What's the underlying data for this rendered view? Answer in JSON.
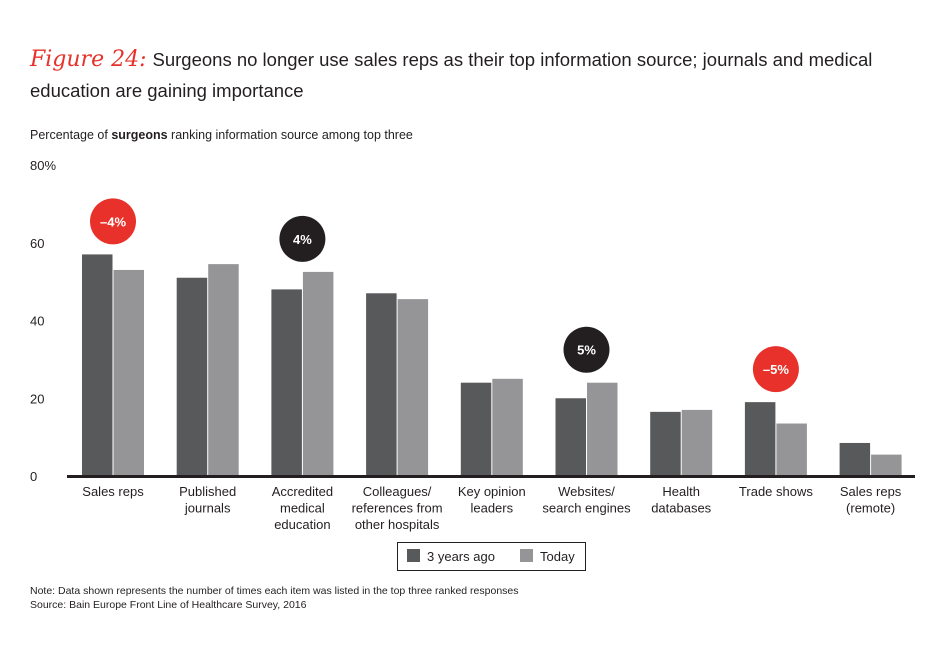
{
  "title": {
    "figure_label": "Figure 24:",
    "text": "Surgeons no longer use sales reps as their top information source; journals and medical education are gaining importance"
  },
  "subtitle": {
    "prefix": "Percentage of ",
    "bold": "surgeons",
    "suffix": " ranking information source among top three"
  },
  "note": "Note: Data shown represents the number of times each item was listed in the top three ranked responses",
  "source": "Source: Bain Europe Front Line of Healthcare Survey, 2016",
  "colors": {
    "three_years_ago": "#58595b",
    "today": "#959598",
    "negative_bubble": "#e8312a",
    "positive_bubble": "#231f20"
  },
  "chart_data": {
    "type": "bar",
    "ylabel": "",
    "ylim": [
      0,
      80
    ],
    "yticks": [
      "0",
      "20",
      "40",
      "60",
      "80%"
    ],
    "ytick_values": [
      0,
      20,
      40,
      60,
      80
    ],
    "grid": false,
    "legend_placement": "bottom",
    "categories": [
      [
        "Sales reps"
      ],
      [
        "Published",
        "journals"
      ],
      [
        "Accredited",
        "medical",
        "education"
      ],
      [
        "Colleagues/",
        "references from",
        "other hospitals"
      ],
      [
        "Key opinion",
        "leaders"
      ],
      [
        "Websites/",
        "search engines"
      ],
      [
        "Health",
        "databases"
      ],
      [
        "Trade shows"
      ],
      [
        "Sales reps",
        "(remote)"
      ]
    ],
    "series": [
      {
        "name": "3 years ago",
        "values": [
          57,
          51,
          48,
          47,
          24,
          20,
          16.5,
          19,
          8.5
        ]
      },
      {
        "name": "Today",
        "values": [
          53,
          54.5,
          52.5,
          45.5,
          25,
          24,
          17,
          13.5,
          5.5
        ]
      }
    ],
    "annotations": [
      {
        "category_index": 0,
        "text": "–4%",
        "sign": "negative"
      },
      {
        "category_index": 2,
        "text": "4%",
        "sign": "positive"
      },
      {
        "category_index": 5,
        "text": "5%",
        "sign": "positive"
      },
      {
        "category_index": 7,
        "text": "–5%",
        "sign": "negative"
      }
    ]
  }
}
